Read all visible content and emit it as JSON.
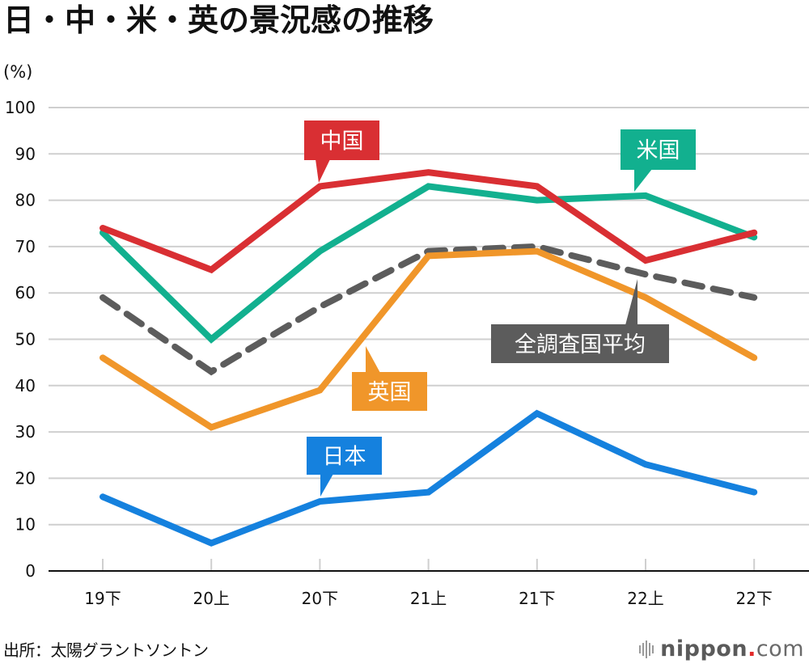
{
  "title": "日・中・米・英の景況感の推移",
  "unit_label": "(%)",
  "source": "出所：太陽グラントソントン",
  "logo": {
    "brand": "nippon",
    "dot": ".",
    "tld": "com",
    "icon": "sound-bars-icon"
  },
  "chart_data": {
    "type": "line",
    "title": "日・中・米・英の景況感の推移",
    "xlabel": "",
    "ylabel": "(%)",
    "categories": [
      "19下",
      "20上",
      "20下",
      "21上",
      "21下",
      "22上",
      "22下"
    ],
    "yticks": [
      0,
      10,
      20,
      30,
      40,
      50,
      60,
      70,
      80,
      90,
      100
    ],
    "ylim": [
      0,
      100
    ],
    "grid": true,
    "legend": "inline-callouts",
    "series": [
      {
        "key": "china",
        "name": "中国",
        "color": "#d92f33",
        "dashed": false,
        "values": [
          74,
          65,
          83,
          86,
          83,
          67,
          73
        ],
        "label_at": 2,
        "label_dir": "above"
      },
      {
        "key": "us",
        "name": "米国",
        "color": "#12b08f",
        "dashed": false,
        "values": [
          73,
          50,
          69,
          83,
          80,
          81,
          72
        ],
        "label_at": 5,
        "label_dir": "above"
      },
      {
        "key": "average",
        "name": "全調査国平均",
        "color": "#5c5c5c",
        "dashed": true,
        "values": [
          59,
          43,
          57,
          69,
          70,
          64,
          59
        ],
        "label_at": 5,
        "label_dir": "below"
      },
      {
        "key": "uk",
        "name": "英国",
        "color": "#f0962a",
        "dashed": false,
        "values": [
          46,
          31,
          39,
          68,
          69,
          59,
          46
        ],
        "label_at": 2,
        "label_dir": "below"
      },
      {
        "key": "japan",
        "name": "日本",
        "color": "#1581de",
        "dashed": false,
        "values": [
          16,
          6,
          15,
          17,
          34,
          23,
          17
        ],
        "label_at": 2,
        "label_dir": "above"
      }
    ]
  }
}
